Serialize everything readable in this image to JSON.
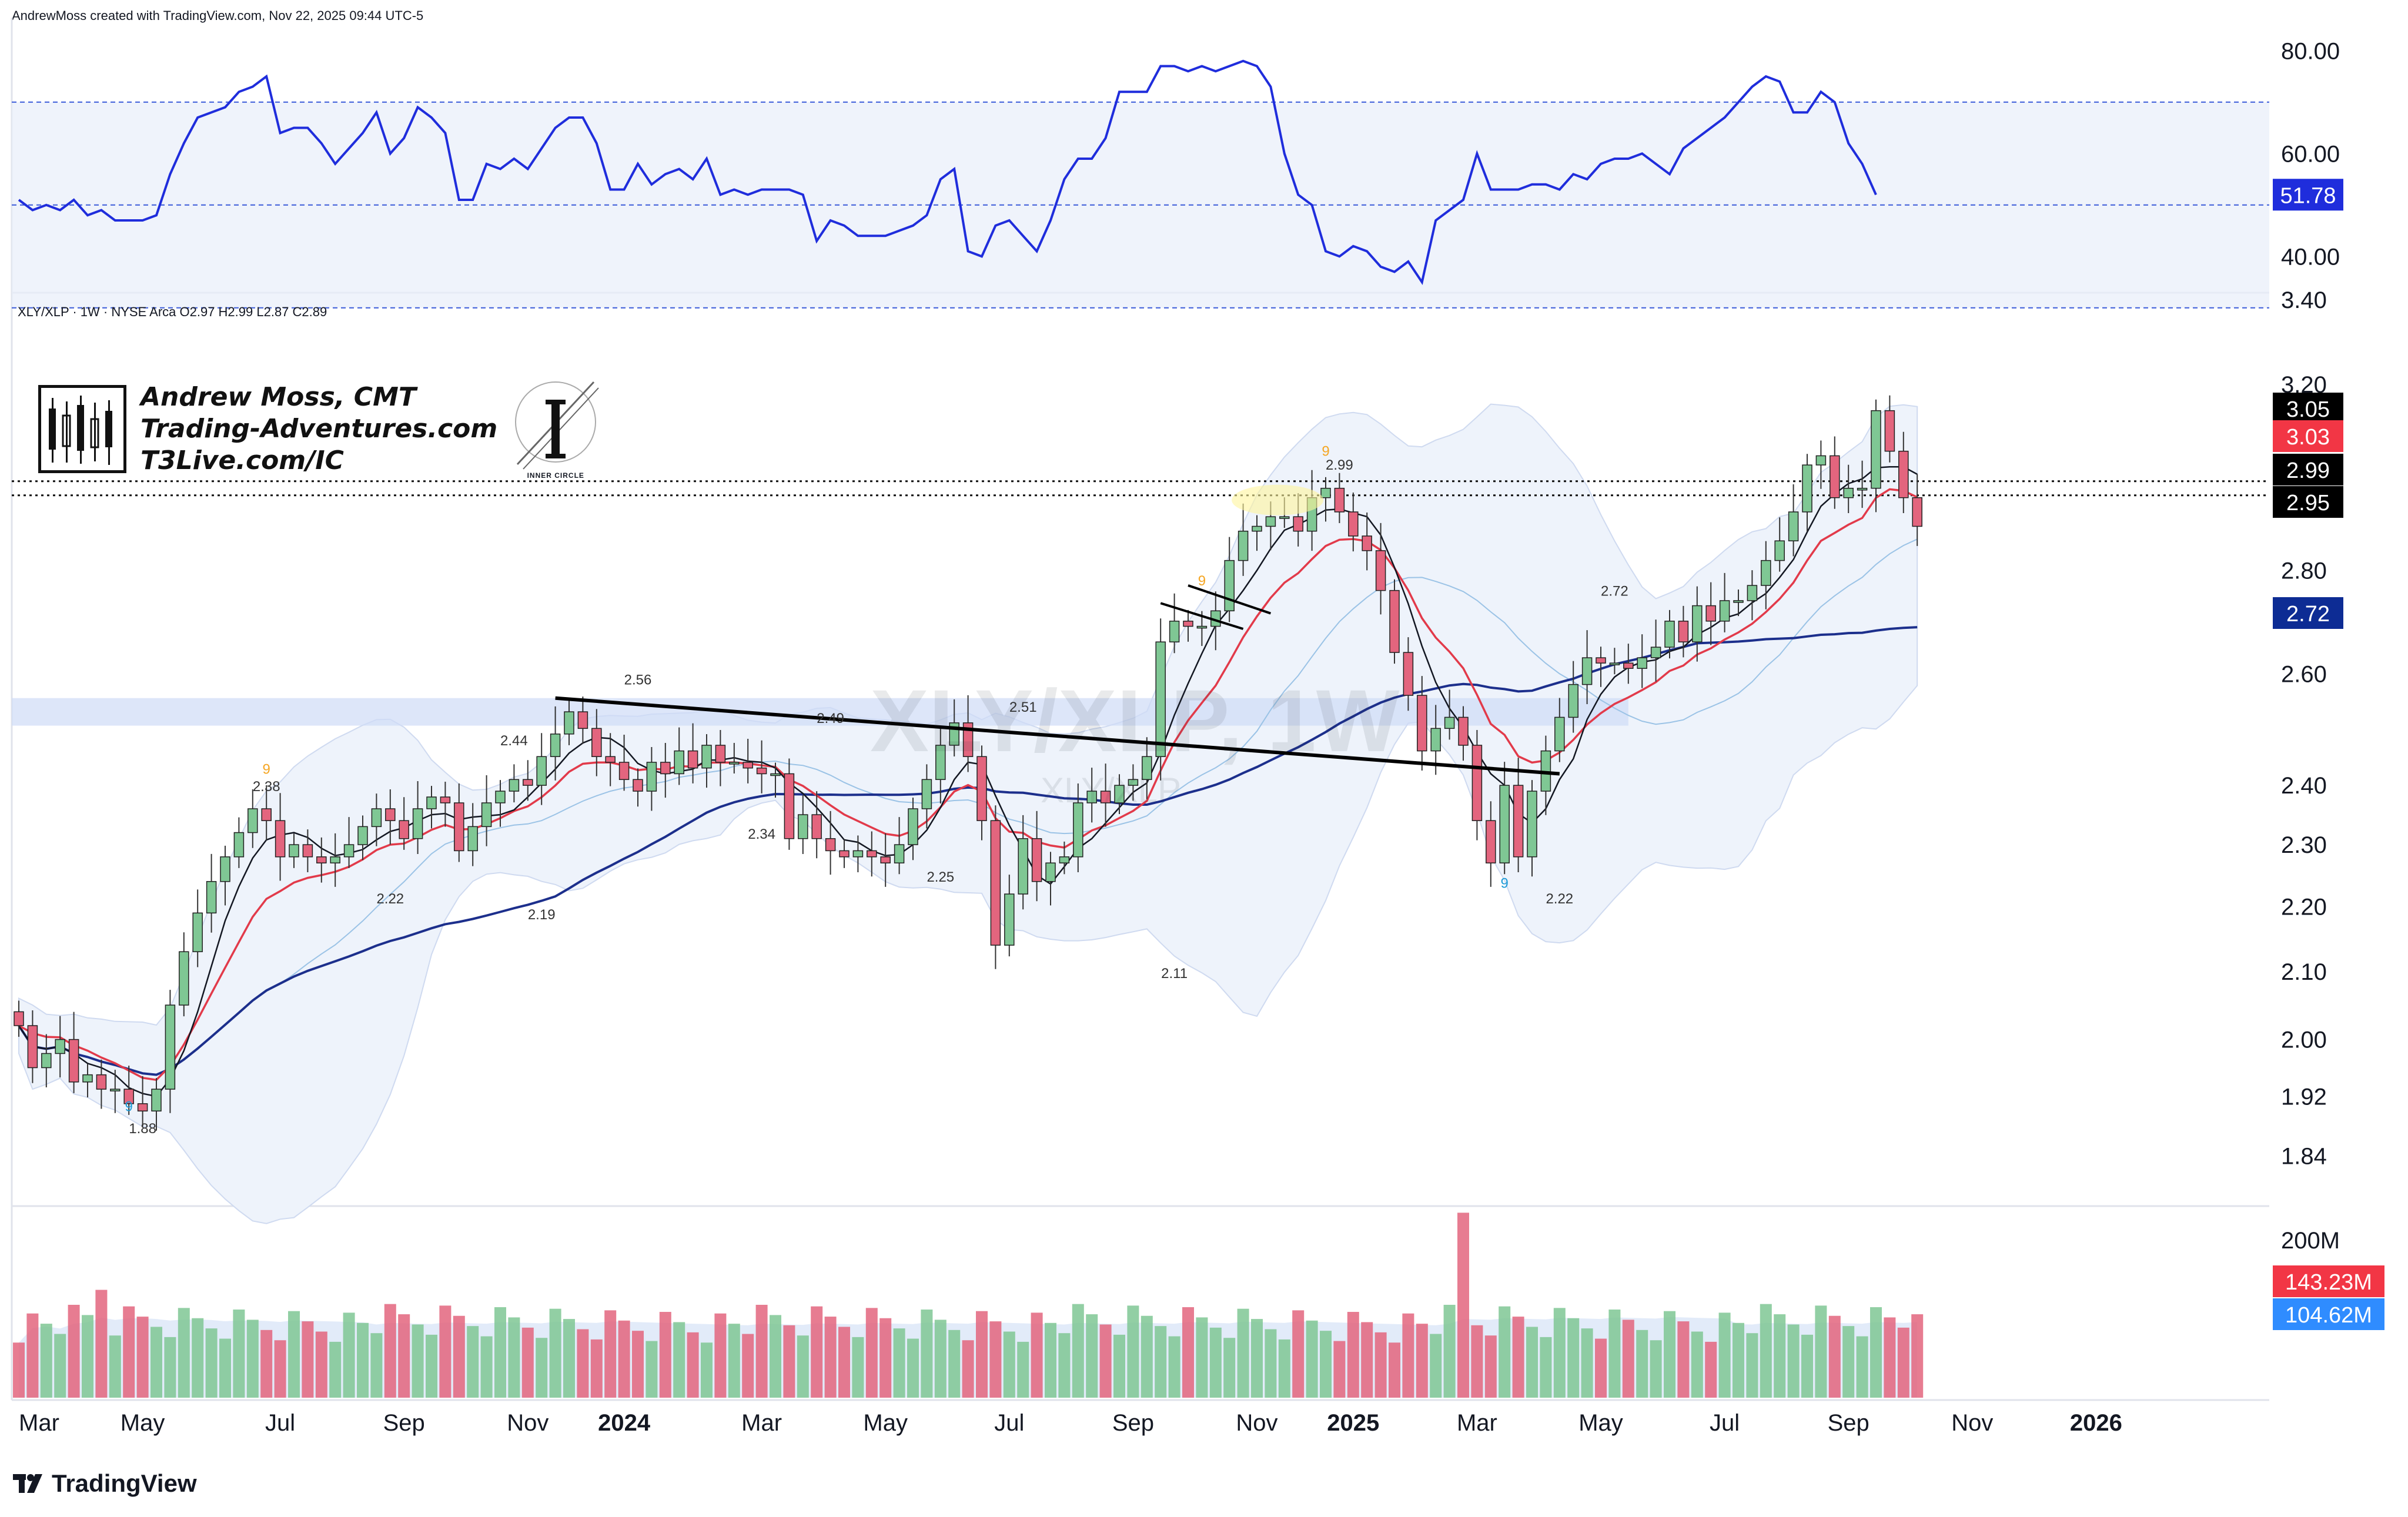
{
  "header": {
    "credit": "AndrewMoss created with TradingView.com, Nov 22, 2025 09:44 UTC-5",
    "symbol_info": "XLY/XLP · 1W · NYSE Arca  O2.97  H2.99  L2.87  C2.89"
  },
  "watermark": {
    "title": "XLY/XLP, 1W",
    "subtitle": "XLY/XLP"
  },
  "branding": {
    "lines": [
      "Andrew Moss, CMT",
      "Trading-Adventures.com",
      "T3Live.com/IC"
    ],
    "logo_caption": "INNER CIRCLE"
  },
  "footer": {
    "brand": "TradingView"
  },
  "colors": {
    "up": "#7fc794",
    "down": "#e3657e",
    "rsi": "#1f2ddc",
    "sma_fast": "#131722",
    "ema": "#e23a4a",
    "sma_slow": "#1c2f8c",
    "band": "#e8eef9",
    "price_tag_black": "#000000",
    "price_tag_red": "#f23645",
    "price_tag_navy": "#0d2c94",
    "vol_red": "#f23645",
    "vol_blue": "#2f8cff"
  },
  "chart_data": [
    {
      "type": "line",
      "name": "RSI",
      "ylim": [
        35,
        83
      ],
      "ticks": [
        "80.00",
        "60.00",
        "40.00"
      ],
      "tick_values": [
        80,
        60,
        40
      ],
      "bands": [
        70,
        30
      ],
      "midline": 50,
      "last_value_label": "51.78",
      "values": [
        51,
        49,
        50,
        49,
        51,
        48,
        49,
        47,
        47,
        47,
        48,
        56,
        62,
        67,
        68,
        69,
        72,
        73,
        75,
        64,
        65,
        65,
        62,
        58,
        61,
        64,
        68,
        60,
        63,
        69,
        67,
        64,
        51,
        51,
        58,
        57,
        59,
        57,
        61,
        65,
        67,
        67,
        62,
        53,
        53,
        58,
        54,
        56,
        57,
        55,
        59,
        52,
        53,
        52,
        53,
        53,
        53,
        52,
        43,
        47,
        46,
        44,
        44,
        44,
        45,
        46,
        48,
        55,
        57,
        41,
        40,
        46,
        47,
        44,
        41,
        47,
        55,
        59,
        59,
        63,
        72,
        72,
        72,
        77,
        77,
        76,
        77,
        76,
        77,
        78,
        77,
        73,
        60,
        52,
        50,
        41,
        40,
        42,
        41,
        38,
        37,
        39,
        35,
        47,
        49,
        51,
        60,
        53,
        53,
        53,
        54,
        54,
        53,
        56,
        55,
        58,
        59,
        59,
        60,
        58,
        56,
        61,
        63,
        65,
        67,
        70,
        73,
        75,
        74,
        68,
        68,
        72,
        70,
        62,
        58,
        52
      ]
    },
    {
      "type": "candlestick",
      "name": "XLY/XLP",
      "ylog": true,
      "ylim": [
        1.78,
        3.4
      ],
      "ticks": [
        "3.40",
        "3.20",
        "2.80",
        "2.60",
        "2.40",
        "2.30",
        "2.20",
        "2.10",
        "2.00",
        "1.92",
        "1.84"
      ],
      "tick_values": [
        3.4,
        3.2,
        2.8,
        2.6,
        2.4,
        2.3,
        2.2,
        2.1,
        2.0,
        1.92,
        1.84
      ],
      "x_labels": [
        "Mar",
        "May",
        "Jul",
        "Sep",
        "Nov",
        "2024",
        "Mar",
        "May",
        "Jul",
        "Sep",
        "Nov",
        "2025",
        "Mar",
        "May",
        "Jul",
        "Sep",
        "Nov",
        "2026"
      ],
      "x_label_bold": [
        false,
        false,
        false,
        false,
        false,
        true,
        false,
        false,
        false,
        false,
        false,
        true,
        false,
        false,
        false,
        false,
        false,
        true
      ],
      "x_label_week": [
        0,
        9,
        19,
        28,
        37,
        44,
        54,
        63,
        72,
        81,
        90,
        97,
        106,
        115,
        124,
        133,
        142,
        151
      ],
      "closes": [
        2.02,
        1.96,
        1.98,
        2.0,
        1.94,
        1.95,
        1.93,
        1.93,
        1.91,
        1.9,
        1.93,
        2.05,
        2.13,
        2.19,
        2.24,
        2.28,
        2.32,
        2.36,
        2.34,
        2.28,
        2.3,
        2.28,
        2.27,
        2.28,
        2.3,
        2.33,
        2.36,
        2.34,
        2.31,
        2.36,
        2.38,
        2.37,
        2.29,
        2.33,
        2.37,
        2.39,
        2.41,
        2.4,
        2.45,
        2.49,
        2.53,
        2.5,
        2.45,
        2.44,
        2.41,
        2.39,
        2.44,
        2.42,
        2.46,
        2.43,
        2.47,
        2.44,
        2.44,
        2.43,
        2.42,
        2.42,
        2.31,
        2.35,
        2.31,
        2.29,
        2.28,
        2.29,
        2.28,
        2.27,
        2.3,
        2.36,
        2.41,
        2.47,
        2.51,
        2.45,
        2.34,
        2.14,
        2.22,
        2.31,
        2.24,
        2.27,
        2.28,
        2.37,
        2.39,
        2.37,
        2.4,
        2.41,
        2.45,
        2.66,
        2.7,
        2.69,
        2.69,
        2.72,
        2.82,
        2.88,
        2.89,
        2.91,
        2.91,
        2.88,
        2.95,
        2.97,
        2.92,
        2.87,
        2.84,
        2.76,
        2.64,
        2.56,
        2.46,
        2.5,
        2.52,
        2.47,
        2.34,
        2.27,
        2.4,
        2.28,
        2.39,
        2.46,
        2.52,
        2.58,
        2.63,
        2.62,
        2.62,
        2.61,
        2.63,
        2.65,
        2.7,
        2.66,
        2.73,
        2.7,
        2.74,
        2.74,
        2.77,
        2.82,
        2.86,
        2.92,
        3.02,
        3.04,
        2.95,
        2.97,
        2.97,
        3.14,
        3.05,
        2.95,
        2.89
      ],
      "labels": [
        {
          "text": "1.88",
          "week": 9,
          "price": 1.87
        },
        {
          "text": "2.38",
          "week": 18,
          "price": 2.39
        },
        {
          "text": "2.22",
          "week": 27,
          "price": 2.205
        },
        {
          "text": "2.44",
          "week": 36,
          "price": 2.47
        },
        {
          "text": "2.19",
          "week": 38,
          "price": 2.18
        },
        {
          "text": "2.56",
          "week": 45,
          "price": 2.58
        },
        {
          "text": "2.34",
          "week": 54,
          "price": 2.31
        },
        {
          "text": "2.49",
          "week": 59,
          "price": 2.51
        },
        {
          "text": "2.25",
          "week": 67,
          "price": 2.24
        },
        {
          "text": "2.51",
          "week": 73,
          "price": 2.53
        },
        {
          "text": "2.11",
          "week": 84,
          "price": 2.09
        },
        {
          "text": "2.99",
          "week": 96,
          "price": 3.01
        },
        {
          "text": "2.72",
          "week": 116,
          "price": 2.75
        },
        {
          "text": "2.22",
          "week": 112,
          "price": 2.205
        }
      ],
      "td_markers": [
        {
          "text": "9",
          "week": 8,
          "price": 1.9,
          "color": "#1e9bd7"
        },
        {
          "text": "9",
          "week": 18,
          "price": 2.42,
          "color": "#f5a623"
        },
        {
          "text": "9",
          "week": 86,
          "price": 2.77,
          "color": "#f5a623"
        },
        {
          "text": "9",
          "week": 95,
          "price": 3.04,
          "color": "#f5a623"
        },
        {
          "text": "9",
          "week": 108,
          "price": 2.23,
          "color": "#1e9bd7"
        }
      ],
      "price_tags": [
        {
          "text": "3.05",
          "price": 3.05,
          "color": "#000000"
        },
        {
          "text": "3.03",
          "price": 3.03,
          "color": "#f23645"
        },
        {
          "text": "2.99",
          "price": 2.99,
          "color": "#000000"
        },
        {
          "text": "2.95",
          "price": 2.95,
          "color": "#000000"
        },
        {
          "text": "2.72",
          "price": 2.72,
          "color": "#0d2c94"
        }
      ],
      "horizontal_levels": [
        2.985,
        2.955
      ],
      "trendline": {
        "from": {
          "week": 39,
          "price": 2.555
        },
        "to": {
          "week": 112,
          "price": 2.42
        }
      },
      "resistance_zone": [
        2.505,
        2.555
      ]
    },
    {
      "type": "bar",
      "name": "Volume",
      "ylim": [
        0,
        230
      ],
      "ticks": [
        "200M"
      ],
      "tick_values": [
        200
      ],
      "last_tags": [
        {
          "text": "143.23M",
          "color": "#f23645"
        },
        {
          "text": "104.62M",
          "color": "#2f8cff"
        }
      ]
    }
  ]
}
